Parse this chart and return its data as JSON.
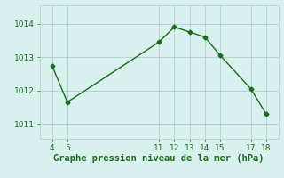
{
  "x": [
    4,
    5,
    11,
    12,
    13,
    14,
    15,
    17,
    18
  ],
  "y": [
    1012.75,
    1011.65,
    1013.45,
    1013.9,
    1013.75,
    1013.6,
    1013.05,
    1012.05,
    1011.3
  ],
  "line_color": "#1a6b1a",
  "marker": "D",
  "marker_size": 2.5,
  "line_width": 1.0,
  "title": "Graphe pression niveau de la mer (hPa)",
  "xticks": [
    4,
    5,
    11,
    12,
    13,
    14,
    15,
    17,
    18
  ],
  "yticks": [
    1011,
    1012,
    1013,
    1014
  ],
  "xlim": [
    3.2,
    18.8
  ],
  "ylim": [
    1010.55,
    1014.55
  ],
  "bg_color": "#d8f0ee",
  "grid_color": "#b0d0ce",
  "tick_label_color": "#1a6b1a",
  "xlabel_color": "#1a6b1a",
  "xlabel_fontsize": 7.5,
  "tick_fontsize": 6.5
}
